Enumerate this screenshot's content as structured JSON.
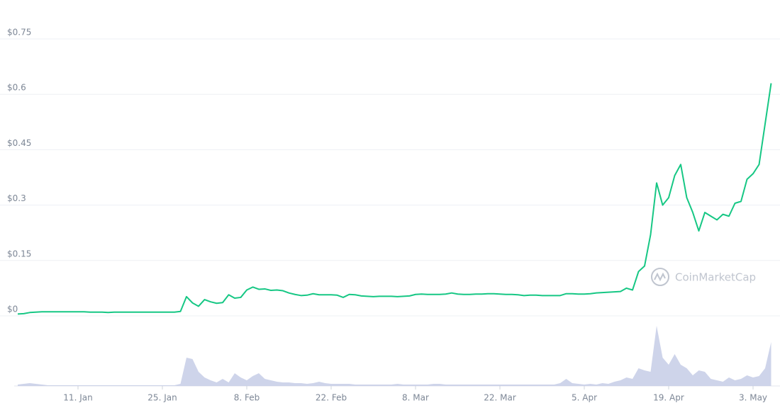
{
  "chart_data": {
    "type": "line",
    "watermark": "CoinMarketCap",
    "x": [
      "1. Jan",
      "2. Jan",
      "3. Jan",
      "4. Jan",
      "5. Jan",
      "6. Jan",
      "7. Jan",
      "8. Jan",
      "9. Jan",
      "10. Jan",
      "11. Jan",
      "12. Jan",
      "13. Jan",
      "14. Jan",
      "15. Jan",
      "16. Jan",
      "17. Jan",
      "18. Jan",
      "19. Jan",
      "20. Jan",
      "21. Jan",
      "22. Jan",
      "23. Jan",
      "24. Jan",
      "25. Jan",
      "26. Jan",
      "27. Jan",
      "28. Jan",
      "29. Jan",
      "30. Jan",
      "31. Jan",
      "1. Feb",
      "2. Feb",
      "3. Feb",
      "4. Feb",
      "5. Feb",
      "6. Feb",
      "7. Feb",
      "8. Feb",
      "9. Feb",
      "10. Feb",
      "11. Feb",
      "12. Feb",
      "13. Feb",
      "14. Feb",
      "15. Feb",
      "16. Feb",
      "17. Feb",
      "18. Feb",
      "19. Feb",
      "20. Feb",
      "21. Feb",
      "22. Feb",
      "23. Feb",
      "24. Feb",
      "25. Feb",
      "26. Feb",
      "27. Feb",
      "28. Feb",
      "1. Mar",
      "2. Mar",
      "3. Mar",
      "4. Mar",
      "5. Mar",
      "6. Mar",
      "7. Mar",
      "8. Mar",
      "9. Mar",
      "10. Mar",
      "11. Mar",
      "12. Mar",
      "13. Mar",
      "14. Mar",
      "15. Mar",
      "16. Mar",
      "17. Mar",
      "18. Mar",
      "19. Mar",
      "20. Mar",
      "21. Mar",
      "22. Mar",
      "23. Mar",
      "24. Mar",
      "25. Mar",
      "26. Mar",
      "27. Mar",
      "28. Mar",
      "29. Mar",
      "30. Mar",
      "31. Mar",
      "1. Apr",
      "2. Apr",
      "3. Apr",
      "4. Apr",
      "5. Apr",
      "6. Apr",
      "7. Apr",
      "8. Apr",
      "9. Apr",
      "10. Apr",
      "11. Apr",
      "12. Apr",
      "13. Apr",
      "14. Apr",
      "15. Apr",
      "16. Apr",
      "17. Apr",
      "18. Apr",
      "19. Apr",
      "20. Apr",
      "21. Apr",
      "22. Apr",
      "23. Apr",
      "24. Apr",
      "25. Apr",
      "26. Apr",
      "27. Apr",
      "28. Apr",
      "29. Apr",
      "30. Apr",
      "1. May",
      "2. May",
      "3. May",
      "4. May",
      "5. May",
      "6. May"
    ],
    "series": [
      {
        "color": "#16c784",
        "values": [
          0.005,
          0.006,
          0.009,
          0.01,
          0.011,
          0.011,
          0.011,
          0.011,
          0.011,
          0.011,
          0.011,
          0.011,
          0.01,
          0.01,
          0.01,
          0.009,
          0.01,
          0.01,
          0.01,
          0.01,
          0.01,
          0.01,
          0.01,
          0.01,
          0.01,
          0.01,
          0.01,
          0.012,
          0.052,
          0.035,
          0.026,
          0.044,
          0.038,
          0.034,
          0.036,
          0.057,
          0.048,
          0.05,
          0.07,
          0.078,
          0.072,
          0.073,
          0.069,
          0.07,
          0.068,
          0.062,
          0.058,
          0.055,
          0.056,
          0.06,
          0.057,
          0.057,
          0.057,
          0.056,
          0.05,
          0.058,
          0.057,
          0.054,
          0.053,
          0.052,
          0.053,
          0.053,
          0.053,
          0.052,
          0.053,
          0.054,
          0.058,
          0.059,
          0.058,
          0.058,
          0.058,
          0.059,
          0.062,
          0.059,
          0.058,
          0.058,
          0.059,
          0.059,
          0.06,
          0.06,
          0.059,
          0.058,
          0.058,
          0.057,
          0.055,
          0.056,
          0.056,
          0.055,
          0.055,
          0.055,
          0.055,
          0.06,
          0.06,
          0.059,
          0.059,
          0.06,
          0.062,
          0.063,
          0.064,
          0.065,
          0.066,
          0.075,
          0.07,
          0.12,
          0.135,
          0.22,
          0.36,
          0.3,
          0.32,
          0.38,
          0.41,
          0.32,
          0.28,
          0.23,
          0.28,
          0.27,
          0.26,
          0.275,
          0.27,
          0.305,
          0.31,
          0.37,
          0.385,
          0.41,
          0.52,
          0.63
        ]
      }
    ],
    "volume": {
      "color": "#c5cce6",
      "values": [
        2,
        3,
        4,
        3,
        2,
        1,
        1,
        1,
        1,
        1,
        1,
        1,
        1,
        1,
        1,
        1,
        1,
        1,
        1,
        1,
        1,
        1,
        1,
        1,
        1,
        1,
        1,
        3,
        40,
        38,
        20,
        12,
        8,
        5,
        10,
        5,
        18,
        12,
        8,
        14,
        18,
        10,
        8,
        6,
        5,
        5,
        4,
        4,
        3,
        4,
        6,
        4,
        3,
        3,
        3,
        3,
        2,
        2,
        2,
        2,
        2,
        2,
        2,
        3,
        2,
        2,
        2,
        2,
        2,
        3,
        3,
        2,
        2,
        2,
        2,
        2,
        2,
        2,
        2,
        2,
        2,
        2,
        2,
        2,
        2,
        2,
        2,
        2,
        2,
        2,
        4,
        10,
        4,
        3,
        2,
        3,
        2,
        4,
        3,
        6,
        8,
        12,
        10,
        25,
        22,
        20,
        85,
        40,
        30,
        45,
        30,
        25,
        15,
        22,
        20,
        10,
        8,
        6,
        12,
        8,
        10,
        15,
        12,
        14,
        25,
        62
      ]
    },
    "ylim": [
      0,
      0.75
    ],
    "yticks": [
      {
        "value": 0,
        "label": "$0"
      },
      {
        "value": 0.15,
        "label": "$0.15"
      },
      {
        "value": 0.3,
        "label": "$0.3"
      },
      {
        "value": 0.45,
        "label": "$0.45"
      },
      {
        "value": 0.6,
        "label": "$0.6"
      },
      {
        "value": 0.75,
        "label": "$0.75"
      }
    ],
    "xticks": [
      "11. Jan",
      "25. Jan",
      "8. Feb",
      "22. Feb",
      "8. Mar",
      "22. Mar",
      "5. Apr",
      "19. Apr",
      "3. May"
    ],
    "grid": true
  }
}
